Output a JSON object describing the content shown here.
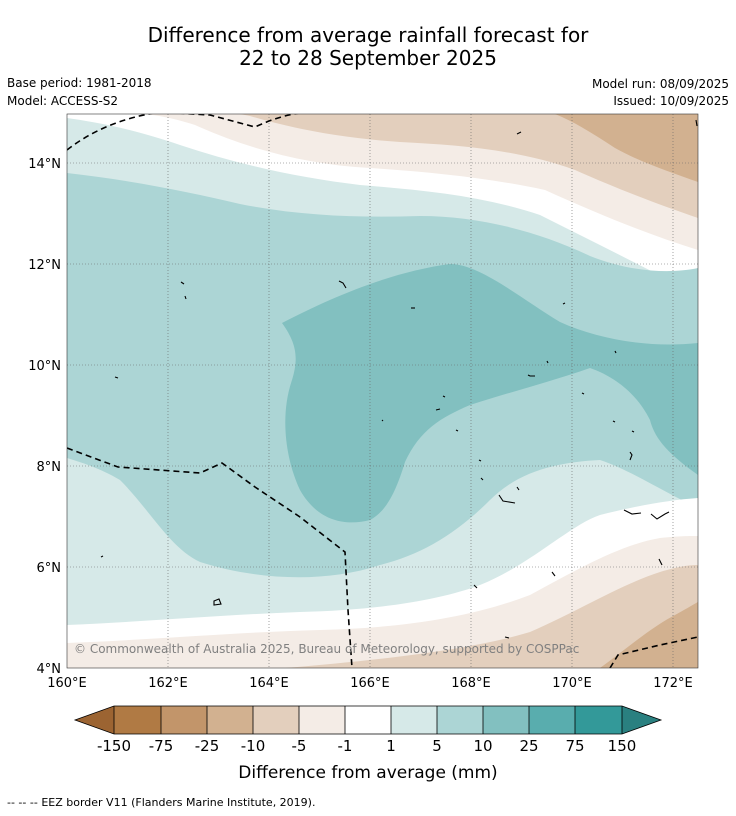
{
  "title": {
    "line1": "Difference from average rainfall forecast for",
    "line2": "22 to 28 September 2025"
  },
  "info": {
    "base_period": "Base period: 1981-2018",
    "model": "Model: ACCESS-S2",
    "model_run": "Model run: 08/09/2025",
    "issued": "Issued: 10/09/2025"
  },
  "map": {
    "lat_labels": [
      "14°N",
      "12°N",
      "10°N",
      "8°N",
      "6°N",
      "4°N"
    ],
    "lon_labels": [
      "160°E",
      "162°E",
      "164°E",
      "166°E",
      "168°E",
      "170°E",
      "172°E"
    ],
    "copyright": "© Commonwealth of Australia 2025, Bureau of Meteorology, supported by COSPPac"
  },
  "colorbar": {
    "tick_labels": [
      "-150",
      "-75",
      "-25",
      "-10",
      "-5",
      "-1",
      "1",
      "5",
      "10",
      "25",
      "75",
      "150"
    ],
    "colors": [
      "#9c6432",
      "#b07a44",
      "#c2956a",
      "#d2b190",
      "#e3cfbd",
      "#f4ece6",
      "#ffffff",
      "#d6e9e8",
      "#acd5d5",
      "#82c0c0",
      "#59adae",
      "#339999",
      "#2a8080"
    ],
    "label": "Difference from average (mm)"
  },
  "footer": {
    "legend_symbol": "-- -- --",
    "eez_text": "EEZ border V11 (Flanders Marine Institute, 2019)."
  }
}
